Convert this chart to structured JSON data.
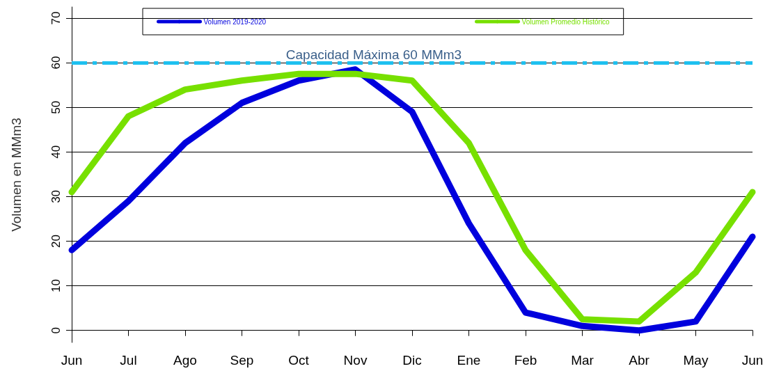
{
  "chart_data": {
    "type": "line",
    "ylabel": "Volumen en MMm3",
    "categories": [
      "Jun",
      "Jul",
      "Ago",
      "Sep",
      "Oct",
      "Nov",
      "Dic",
      "Ene",
      "Feb",
      "Mar",
      "Abr",
      "May",
      "Jun"
    ],
    "series": [
      {
        "name": "Volumen 2019-2020",
        "color": "#0000dd",
        "values": [
          18,
          29,
          42,
          51,
          56,
          58.5,
          49,
          24,
          4,
          1,
          0,
          2,
          21
        ]
      },
      {
        "name": "Volumen Promedio Histórico",
        "color": "#77e000",
        "values": [
          31,
          48,
          54,
          56,
          57.5,
          57.5,
          56,
          42,
          18,
          2.5,
          2,
          13,
          31
        ]
      }
    ],
    "ylim": [
      -2.7,
      72.5
    ],
    "yticks": [
      0,
      10,
      20,
      30,
      40,
      50,
      60,
      70
    ],
    "ref_lines": [
      {
        "axis": "y",
        "value": 60,
        "label": "Capacidad Máxima 60 MMm3",
        "color": "#1ec0f0",
        "line_style": "dashed"
      }
    ],
    "grid": "y",
    "legend": "top",
    "line_style": "solid"
  }
}
